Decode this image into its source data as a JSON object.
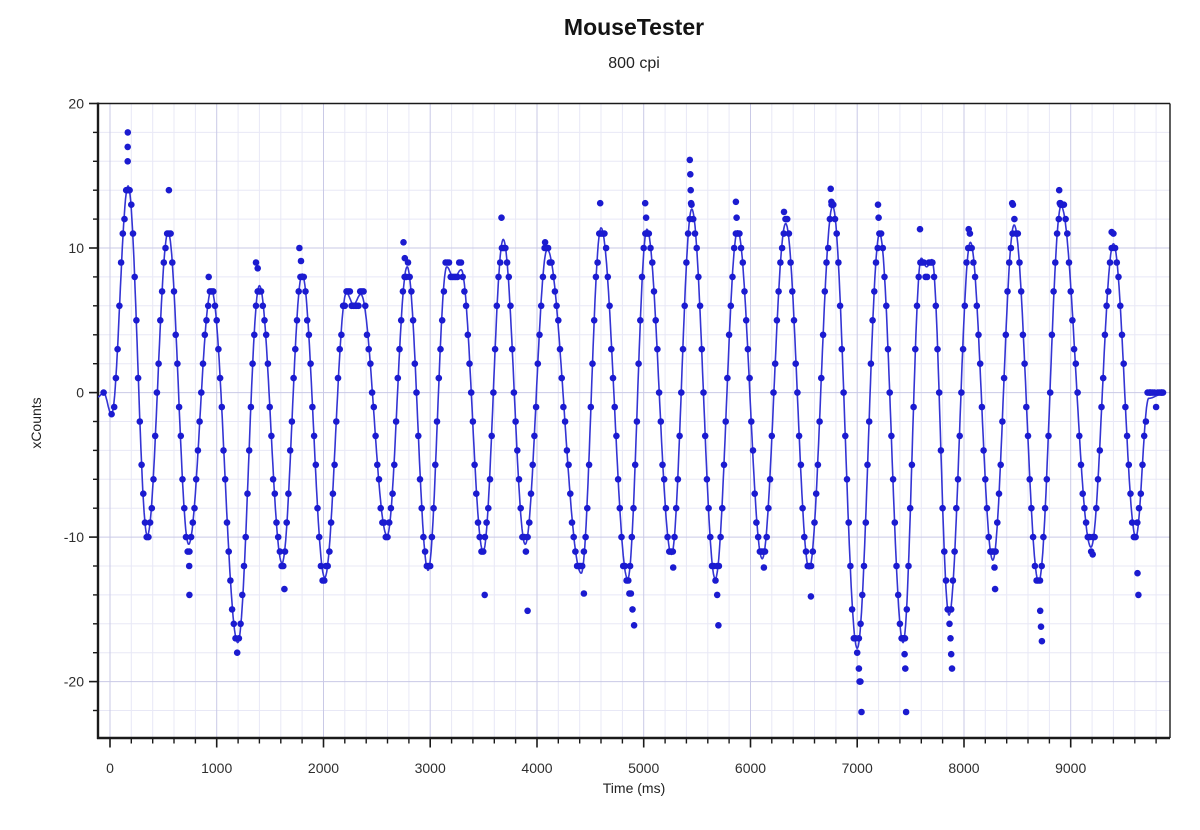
{
  "title": "MouseTester",
  "subtitle": "800 cpi",
  "chart_data": {
    "type": "line",
    "title": "MouseTester",
    "subtitle": "800 cpi",
    "xlabel": "Time (ms)",
    "ylabel": "xCounts",
    "xlim": [
      -112,
      9930
    ],
    "ylim": [
      -23.9,
      20
    ],
    "x_major_ticks": [
      0,
      1000,
      2000,
      3000,
      4000,
      5000,
      6000,
      7000,
      8000,
      9000
    ],
    "x_minor_step": 200,
    "x_minor_max": 9800,
    "y_major_ticks": [
      20,
      10,
      0,
      -10,
      -20
    ],
    "y_minor_step": 2,
    "y_minor_range": [
      -22,
      18
    ],
    "grid": true,
    "legend": "none",
    "colors": {
      "dot": "#1b1bd0",
      "line": "#3434d4",
      "grid_minor": "#e8e8f6",
      "grid_major": "#c9c9e6",
      "axis": "#1a1a1a",
      "tick_label": "#2e2e2e"
    },
    "sample_interval_ms": 16,
    "sample_start_ms": 40,
    "sample_end_ms": 9868,
    "line_extrema": [
      [
        -112,
        -0.3
      ],
      [
        -60,
        0
      ],
      [
        15,
        -1.5
      ],
      [
        170,
        14.3
      ],
      [
        350,
        -9.9
      ],
      [
        545,
        11.1
      ],
      [
        737,
        -10.5
      ],
      [
        950,
        7.1
      ],
      [
        1197,
        -17.3
      ],
      [
        1400,
        7.4
      ],
      [
        1612,
        -11.8
      ],
      [
        1800,
        8.2
      ],
      [
        2012,
        -12.8
      ],
      [
        2215,
        6.9
      ],
      [
        2282,
        6.1
      ],
      [
        2350,
        6.8
      ],
      [
        2596,
        -9.9
      ],
      [
        2784,
        8.7
      ],
      [
        2980,
        -12.3
      ],
      [
        3155,
        8.7
      ],
      [
        3222,
        7.9
      ],
      [
        3290,
        8.5
      ],
      [
        3496,
        -11.0
      ],
      [
        3684,
        10.6
      ],
      [
        3890,
        -10.5
      ],
      [
        4096,
        9.9
      ],
      [
        4415,
        -12.5
      ],
      [
        4600,
        11.4
      ],
      [
        4850,
        -12.9
      ],
      [
        5030,
        11.3
      ],
      [
        5260,
        -11.2
      ],
      [
        5450,
        12.7
      ],
      [
        5670,
        -12.9
      ],
      [
        5880,
        11.2
      ],
      [
        6110,
        -11.5
      ],
      [
        6330,
        11.7
      ],
      [
        6550,
        -12.2
      ],
      [
        6770,
        12.9
      ],
      [
        7000,
        -17.7
      ],
      [
        7210,
        11.0
      ],
      [
        7430,
        -17.3
      ],
      [
        7600,
        9.3
      ],
      [
        7650,
        8.7
      ],
      [
        7700,
        9.2
      ],
      [
        7860,
        -15.4
      ],
      [
        8060,
        10.4
      ],
      [
        8270,
        -11.6
      ],
      [
        8470,
        11.6
      ],
      [
        8700,
        -13.1
      ],
      [
        8910,
        12.9
      ],
      [
        9190,
        -10.7
      ],
      [
        9400,
        10.3
      ],
      [
        9610,
        -10.0
      ],
      [
        9730,
        -0.4
      ],
      [
        9860,
        -0.1
      ]
    ],
    "outlier_points": [
      [
        -60,
        0
      ],
      [
        15,
        -1.5
      ],
      [
        166,
        16
      ],
      [
        166,
        17
      ],
      [
        167,
        18
      ],
      [
        552,
        14
      ],
      [
        742,
        -12
      ],
      [
        744,
        -14
      ],
      [
        925,
        8
      ],
      [
        1368,
        9
      ],
      [
        1384,
        8.6
      ],
      [
        1634,
        -13.6
      ],
      [
        1775,
        10
      ],
      [
        1790,
        9.1
      ],
      [
        2750,
        10.4
      ],
      [
        2762,
        9.3
      ],
      [
        3510,
        -14
      ],
      [
        3668,
        12.1
      ],
      [
        3912,
        -15.1
      ],
      [
        4076,
        10.4
      ],
      [
        4440,
        -13.9
      ],
      [
        4592,
        13.1
      ],
      [
        4866,
        -13.9
      ],
      [
        4880,
        -13.9
      ],
      [
        4895,
        -15.0
      ],
      [
        4910,
        -16.1
      ],
      [
        5014,
        13.1
      ],
      [
        5022,
        12.1
      ],
      [
        5276,
        -12.1
      ],
      [
        5432,
        16.1
      ],
      [
        5436,
        15.1
      ],
      [
        5440,
        14.0
      ],
      [
        5444,
        13.1
      ],
      [
        5688,
        -14.0
      ],
      [
        5700,
        -16.1
      ],
      [
        5864,
        13.2
      ],
      [
        5870,
        12.1
      ],
      [
        6126,
        -12.1
      ],
      [
        6314,
        12.5
      ],
      [
        6566,
        -14.1
      ],
      [
        6752,
        14.1
      ],
      [
        6758,
        13.2
      ],
      [
        6764,
        13.1
      ],
      [
        7016,
        -19.1
      ],
      [
        7022,
        -20.0
      ],
      [
        7030,
        -20.0
      ],
      [
        7040,
        -22.1
      ],
      [
        7195,
        13.0
      ],
      [
        7200,
        12.1
      ],
      [
        7444,
        -18.1
      ],
      [
        7450,
        -19.1
      ],
      [
        7458,
        -22.1
      ],
      [
        7588,
        11.3
      ],
      [
        7874,
        -17.0
      ],
      [
        7880,
        -18.1
      ],
      [
        7888,
        -19.1
      ],
      [
        8044,
        11.3
      ],
      [
        8286,
        -12.1
      ],
      [
        8292,
        -13.6
      ],
      [
        8452,
        13.1
      ],
      [
        8458,
        13.0
      ],
      [
        8714,
        -15.1
      ],
      [
        8722,
        -16.2
      ],
      [
        8730,
        -17.2
      ],
      [
        8892,
        14.0
      ],
      [
        8898,
        13.1
      ],
      [
        8904,
        13.1
      ],
      [
        9206,
        -11.2
      ],
      [
        9384,
        11.1
      ],
      [
        9626,
        -12.5
      ],
      [
        9634,
        -14.0
      ],
      [
        9744,
        0
      ],
      [
        9852,
        0
      ]
    ]
  },
  "plot_geometry_note": "plot box 98,104 to 1170,738"
}
